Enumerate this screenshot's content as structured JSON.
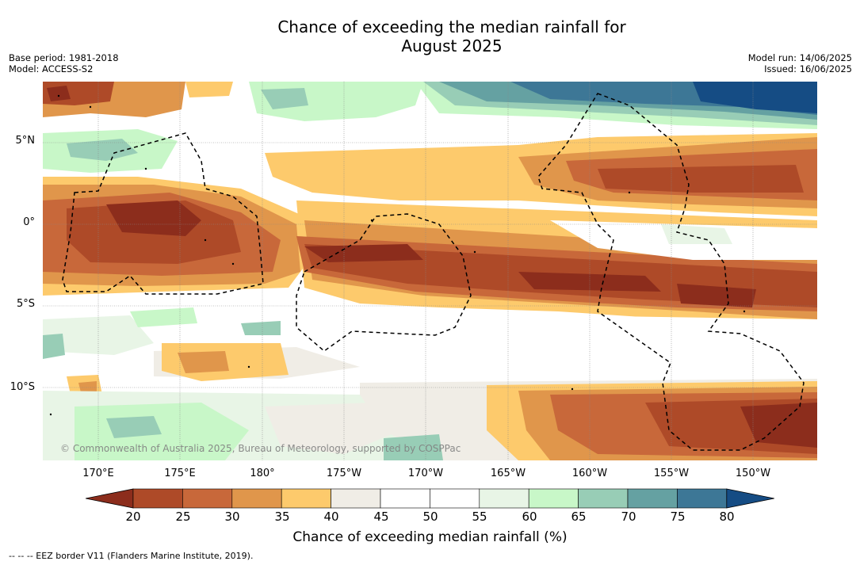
{
  "title": {
    "line1": "Chance of exceeding the median rainfall for",
    "line2": "August 2025"
  },
  "meta": {
    "base_period": "Base period: 1981-2018",
    "model": "Model: ACCESS-S2",
    "model_run": "Model run: 14/06/2025",
    "issued": "Issued: 16/06/2025"
  },
  "map": {
    "latitude_labels": [
      "5°N",
      "0°",
      "5°S",
      "10°S"
    ],
    "longitude_labels": [
      "170°E",
      "175°E",
      "180°",
      "175°W",
      "170°W",
      "165°W",
      "160°W",
      "155°W",
      "150°W"
    ],
    "credit": "© Commonwealth of Australia 2025, Bureau of Meteorology, supported by COSPPac",
    "gridlines": true,
    "border_style": "dashed"
  },
  "colorbar": {
    "title": "Chance of exceeding median rainfall (%)",
    "ticks": [
      "20",
      "25",
      "30",
      "35",
      "40",
      "45",
      "50",
      "55",
      "60",
      "65",
      "70",
      "75",
      "80"
    ],
    "colors": [
      "#8c2d1c",
      "#ae4a28",
      "#c8683a",
      "#e0964b",
      "#fdca6c",
      "#f0ede6",
      "#ffffff",
      "#ffffff",
      "#e8f5e6",
      "#c8f7c8",
      "#98cdb6",
      "#65a1a2",
      "#3d7796",
      "#154c84"
    ]
  },
  "footnote": "--  --  -- EEZ border V11 (Flanders Marine Institute, 2019)."
}
